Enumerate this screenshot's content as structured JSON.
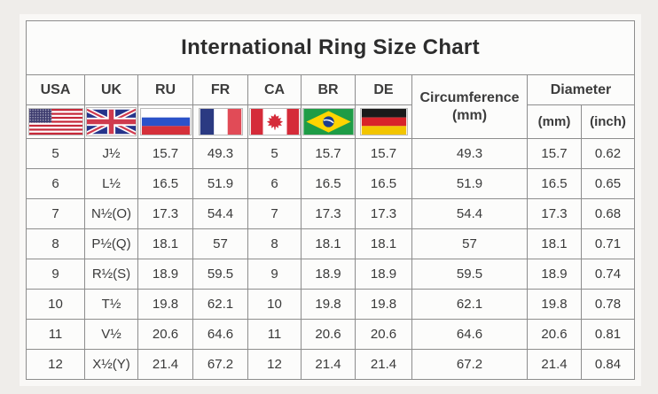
{
  "title": "International Ring Size Chart",
  "palette": {
    "page_background": "#efedea",
    "table_background": "#fcfcfb",
    "grid_border": "#8d8d8d",
    "text": "#3c3c3c",
    "flag_colors": {
      "usa_red": "#c6293a",
      "usa_blue": "#3c3b6e",
      "uk_blue": "#26348b",
      "uk_red": "#cf3a4e",
      "ru_blue": "#2b52c9",
      "ru_red": "#d5303a",
      "fr_blue": "#2b3a82",
      "fr_red": "#e14b57",
      "ca_red": "#d52b39",
      "br_green": "#1e9c46",
      "br_yellow": "#ffd400",
      "br_blue": "#1d3c8e",
      "de_black": "#1a1a1a",
      "de_red": "#d8232a",
      "de_gold": "#f2c500"
    }
  },
  "header": {
    "country_columns": [
      {
        "key": "usa",
        "label": "USA",
        "flag": "usa-flag-icon"
      },
      {
        "key": "uk",
        "label": "UK",
        "flag": "uk-flag-icon"
      },
      {
        "key": "ru",
        "label": "RU",
        "flag": "ru-flag-icon"
      },
      {
        "key": "fr",
        "label": "FR",
        "flag": "fr-flag-icon"
      },
      {
        "key": "ca",
        "label": "CA",
        "flag": "ca-flag-icon"
      },
      {
        "key": "br",
        "label": "BR",
        "flag": "br-flag-icon"
      },
      {
        "key": "de",
        "label": "DE",
        "flag": "de-flag-icon"
      }
    ],
    "circumference": {
      "label": "Circumference",
      "unit": "(mm)"
    },
    "diameter": {
      "label": "Diameter",
      "units": [
        "(mm)",
        "(inch)"
      ]
    }
  },
  "chart_data": {
    "type": "table",
    "title": "International Ring Size Chart",
    "columns": [
      "USA",
      "UK",
      "RU",
      "FR",
      "CA",
      "BR",
      "DE",
      "Circumference (mm)",
      "Diameter (mm)",
      "Diameter (inch)"
    ],
    "rows": [
      [
        "5",
        "J½",
        "15.7",
        "49.3",
        "5",
        "15.7",
        "15.7",
        "49.3",
        "15.7",
        "0.62"
      ],
      [
        "6",
        "L½",
        "16.5",
        "51.9",
        "6",
        "16.5",
        "16.5",
        "51.9",
        "16.5",
        "0.65"
      ],
      [
        "7",
        "N½(O)",
        "17.3",
        "54.4",
        "7",
        "17.3",
        "17.3",
        "54.4",
        "17.3",
        "0.68"
      ],
      [
        "8",
        "P½(Q)",
        "18.1",
        "57",
        "8",
        "18.1",
        "18.1",
        "57",
        "18.1",
        "0.71"
      ],
      [
        "9",
        "R½(S)",
        "18.9",
        "59.5",
        "9",
        "18.9",
        "18.9",
        "59.5",
        "18.9",
        "0.74"
      ],
      [
        "10",
        "T½",
        "19.8",
        "62.1",
        "10",
        "19.8",
        "19.8",
        "62.1",
        "19.8",
        "0.78"
      ],
      [
        "11",
        "V½",
        "20.6",
        "64.6",
        "11",
        "20.6",
        "20.6",
        "64.6",
        "20.6",
        "0.81"
      ],
      [
        "12",
        "X½(Y)",
        "21.4",
        "67.2",
        "12",
        "21.4",
        "21.4",
        "67.2",
        "21.4",
        "0.84"
      ]
    ]
  }
}
